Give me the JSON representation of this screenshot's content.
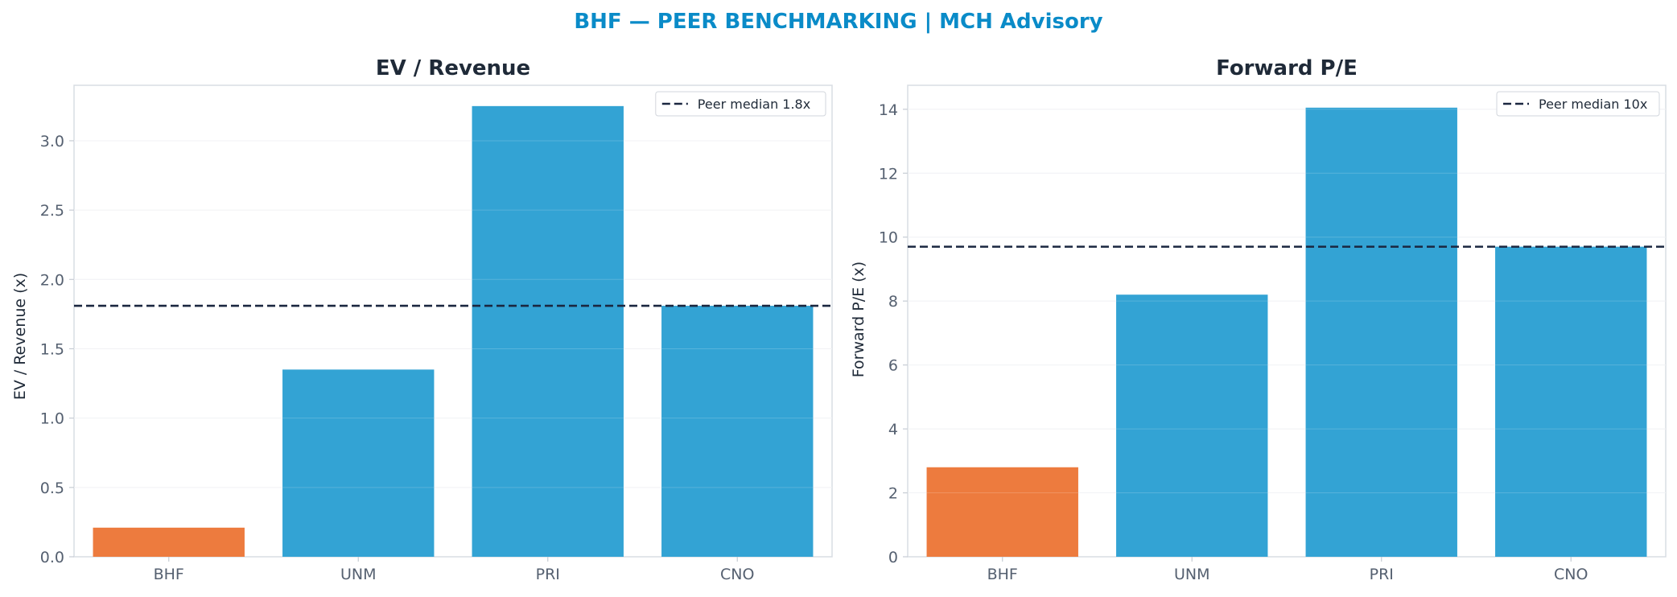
{
  "figure_title": "BHF — PEER BENCHMARKING | MCH Advisory",
  "title_color": "#0a8bc8",
  "colors": {
    "highlight": "#ed7b3e",
    "peer": "#33a3d4",
    "median_line": "#1b2740",
    "text": "#1f2a38",
    "tick": "#556070"
  },
  "chart_data": [
    {
      "type": "bar",
      "title": "EV / Revenue",
      "ylabel": "EV / Revenue (x)",
      "categories": [
        "BHF",
        "UNM",
        "PRI",
        "CNO"
      ],
      "values": [
        0.21,
        1.35,
        3.25,
        1.81
      ],
      "highlight": "BHF",
      "ylim": [
        0,
        3.4
      ],
      "yticks": [
        0.0,
        0.5,
        1.0,
        1.5,
        2.0,
        2.5,
        3.0
      ],
      "ytick_labels": [
        "0.0",
        "0.5",
        "1.0",
        "1.5",
        "2.0",
        "2.5",
        "3.0"
      ],
      "reference_line": {
        "label": "Peer median 1.8x",
        "value": 1.81,
        "style": "dashed"
      },
      "legend_position": "top-right",
      "grid": "horizontal"
    },
    {
      "type": "bar",
      "title": "Forward P/E",
      "ylabel": "Forward P/E (x)",
      "categories": [
        "BHF",
        "UNM",
        "PRI",
        "CNO"
      ],
      "values": [
        2.8,
        8.2,
        14.05,
        9.7
      ],
      "highlight": "BHF",
      "ylim": [
        0,
        14.75
      ],
      "yticks": [
        0,
        2,
        4,
        6,
        8,
        10,
        12,
        14
      ],
      "ytick_labels": [
        "0",
        "2",
        "4",
        "6",
        "8",
        "10",
        "12",
        "14"
      ],
      "reference_line": {
        "label": "Peer median 10x",
        "value": 9.7,
        "style": "dashed"
      },
      "legend_position": "top-right",
      "grid": "horizontal"
    }
  ]
}
